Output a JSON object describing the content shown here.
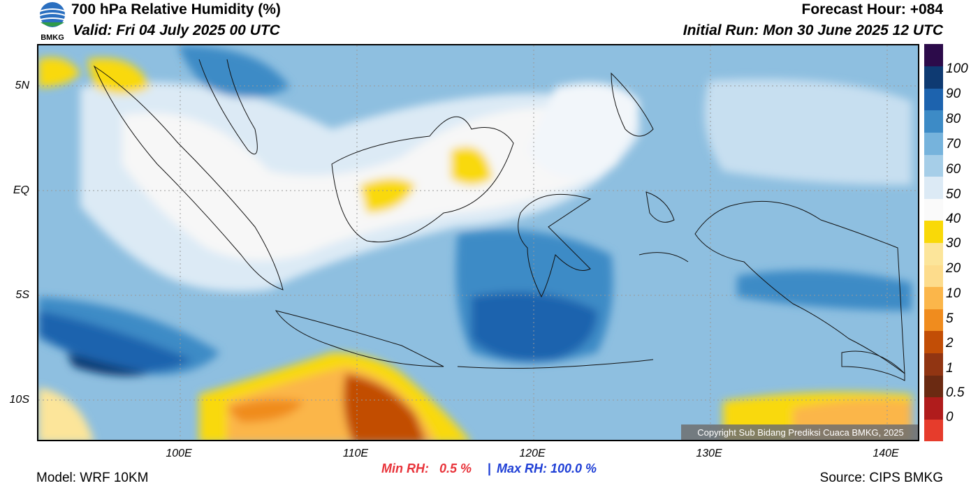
{
  "header": {
    "title": "700 hPa Relative Humidity (%)",
    "valid": "Valid: Fri 04 July 2025 00 UTC",
    "forecast_hour": "Forecast Hour: +084",
    "initial_run": "Initial Run: Mon 30 June 2025 12 UTC"
  },
  "logo": {
    "text": "BMKG"
  },
  "map": {
    "lat_labels": [
      "5N",
      "EQ",
      "5S",
      "10S"
    ],
    "lon_labels": [
      "100E",
      "110E",
      "120E",
      "130E",
      "140E"
    ],
    "copyright": "Copyright Sub Bidang Prediksi Cuaca BMKG, 2025"
  },
  "colorbar": {
    "labels": [
      "100",
      "90",
      "80",
      "70",
      "60",
      "50",
      "40",
      "30",
      "20",
      "10",
      "5",
      "2",
      "1",
      "0.5",
      "0"
    ],
    "colors": [
      "#e63c2c",
      "#b01c1c",
      "#6b2a12",
      "#913512",
      "#c24e06",
      "#f08c1e",
      "#fbb64a",
      "#fddc8c",
      "#fce59a",
      "#f9d908",
      "#fafafa",
      "#dceaf5",
      "#a6cee8",
      "#76b3dc",
      "#3d8bc6",
      "#1d63ae",
      "#0e3a72",
      "#2c0b4a"
    ]
  },
  "stats": {
    "min_rh": "Min RH:   0.5 %",
    "separator": "|",
    "max_rh": "Max RH: 100.0 %"
  },
  "footer": {
    "model": "Model: WRF 10KM",
    "source": "Source: CIPS BMKG"
  },
  "colors": {
    "sea_mid": "#8ebfe0",
    "min_color": "#e8333a",
    "max_color": "#1f3fd6"
  }
}
